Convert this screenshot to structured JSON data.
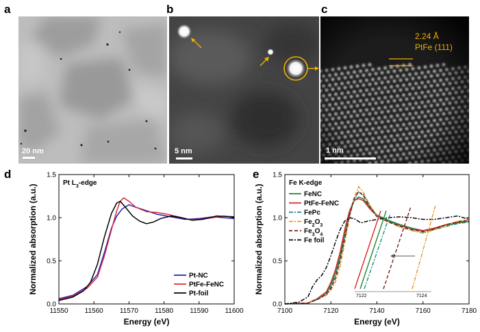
{
  "figure": {
    "panels": {
      "a": {
        "letter": "a",
        "scale_label": "20 nm"
      },
      "b": {
        "letter": "b",
        "scale_label": "5 nm"
      },
      "c": {
        "letter": "c",
        "scale_label": "1 nm",
        "annot_line1": "2.24 Å",
        "annot_line2": "PtFe (111)"
      },
      "d": {
        "letter": "d"
      },
      "e": {
        "letter": "e"
      }
    },
    "colors": {
      "annotation": "#f0b000"
    }
  },
  "chart_data": [
    {
      "type": "line",
      "panel": "d",
      "title": "Pt L3-edge",
      "title_main": "Pt L",
      "title_sub": "3",
      "title_tail": "-edge",
      "xlabel": "Energy (eV)",
      "ylabel": "Normalized absorption (a.u.)",
      "xlim": [
        11550,
        11600
      ],
      "ylim": [
        0.0,
        1.5
      ],
      "xticks": [
        11550,
        11560,
        11570,
        11580,
        11590,
        11600
      ],
      "yticks": [
        "0.0",
        "0.5",
        "1.0",
        "1.5"
      ],
      "legend_position": "bottom-right",
      "series": [
        {
          "name": "Pt-NC",
          "color": "#1f1fb4",
          "points": [
            [
              11550,
              0.06
            ],
            [
              11554,
              0.1
            ],
            [
              11558,
              0.2
            ],
            [
              11561,
              0.34
            ],
            [
              11563,
              0.6
            ],
            [
              11565,
              0.88
            ],
            [
              11566.5,
              1.02
            ],
            [
              11568,
              1.1
            ],
            [
              11570,
              1.15
            ],
            [
              11572,
              1.12
            ],
            [
              11575,
              1.08
            ],
            [
              11578,
              1.04
            ],
            [
              11582,
              1.01
            ],
            [
              11586,
              0.98
            ],
            [
              11590,
              0.99
            ],
            [
              11594,
              1.01
            ],
            [
              11597,
              1.0
            ],
            [
              11600,
              0.99
            ]
          ]
        },
        {
          "name": "PtFe-FeNC",
          "color": "#e0283c",
          "points": [
            [
              11550,
              0.05
            ],
            [
              11554,
              0.09
            ],
            [
              11558,
              0.18
            ],
            [
              11561,
              0.31
            ],
            [
              11563,
              0.56
            ],
            [
              11565,
              0.86
            ],
            [
              11566.5,
              1.08
            ],
            [
              11567.5,
              1.19
            ],
            [
              11568.5,
              1.23
            ],
            [
              11570,
              1.19
            ],
            [
              11572,
              1.12
            ],
            [
              11575,
              1.07
            ],
            [
              11578,
              1.06
            ],
            [
              11581,
              1.04
            ],
            [
              11584,
              1.01
            ],
            [
              11587,
              0.98
            ],
            [
              11590,
              0.98
            ],
            [
              11594,
              1.0
            ],
            [
              11597,
              1.02
            ],
            [
              11600,
              1.0
            ]
          ]
        },
        {
          "name": "Pt-foil",
          "color": "#000000",
          "points": [
            [
              11550,
              0.04
            ],
            [
              11554,
              0.08
            ],
            [
              11557,
              0.15
            ],
            [
              11559,
              0.25
            ],
            [
              11561,
              0.46
            ],
            [
              11563,
              0.78
            ],
            [
              11565,
              1.05
            ],
            [
              11566.5,
              1.17
            ],
            [
              11567.5,
              1.19
            ],
            [
              11569,
              1.12
            ],
            [
              11571,
              1.02
            ],
            [
              11573,
              0.96
            ],
            [
              11575,
              0.93
            ],
            [
              11577,
              0.95
            ],
            [
              11579,
              0.99
            ],
            [
              11582,
              1.02
            ],
            [
              11585,
              1.0
            ],
            [
              11588,
              0.97
            ],
            [
              11591,
              0.98
            ],
            [
              11595,
              1.02
            ],
            [
              11600,
              1.01
            ]
          ]
        }
      ]
    },
    {
      "type": "line",
      "panel": "e",
      "title": "Fe K-edge",
      "xlabel": "Energy (eV)",
      "ylabel": "Normalized absorption (a.u.)",
      "xlim": [
        7100,
        7180
      ],
      "ylim": [
        0.0,
        1.5
      ],
      "xticks": [
        7100,
        7120,
        7140,
        7160,
        7180
      ],
      "yticks": [
        "0.0",
        "0.5",
        "1.0",
        "1.5"
      ],
      "legend_position": "top-left",
      "legend": [
        {
          "label": "FeNC",
          "sub": "",
          "tail": "",
          "color": "#1a8a2c",
          "dash": ""
        },
        {
          "label": "PtFe-FeNC",
          "sub": "",
          "tail": "",
          "color": "#d8232a",
          "dash": ""
        },
        {
          "label": "FePc",
          "sub": "",
          "tail": "",
          "color": "#1a8c8c",
          "dash": "6,2,2,2"
        },
        {
          "label": "Fe",
          "sub": "2",
          "tail": "O",
          "sub2": "3",
          "color": "#e8961e",
          "dash": "6,2,2,2"
        },
        {
          "label": "Fe",
          "sub": "3",
          "tail": "O",
          "sub2": "4",
          "color": "#7a1a1a",
          "dash": "5,3"
        },
        {
          "label": "Fe foil",
          "sub": "",
          "tail": "",
          "sub2": "",
          "color": "#000000",
          "dash": "6,2,2,2"
        }
      ],
      "series": [
        {
          "name": "FeNC",
          "color": "#1a8a2c",
          "dash": "",
          "points": [
            [
              7100,
              0.0
            ],
            [
              7110,
              0.01
            ],
            [
              7114,
              0.05
            ],
            [
              7118,
              0.12
            ],
            [
              7120,
              0.22
            ],
            [
              7122,
              0.36
            ],
            [
              7124,
              0.55
            ],
            [
              7126,
              0.8
            ],
            [
              7128,
              1.03
            ],
            [
              7130,
              1.19
            ],
            [
              7132,
              1.24
            ],
            [
              7134,
              1.22
            ],
            [
              7137,
              1.12
            ],
            [
              7140,
              1.03
            ],
            [
              7145,
              0.97
            ],
            [
              7150,
              0.92
            ],
            [
              7155,
              0.88
            ],
            [
              7160,
              0.85
            ],
            [
              7165,
              0.87
            ],
            [
              7170,
              0.91
            ],
            [
              7175,
              0.94
            ],
            [
              7180,
              0.96
            ]
          ]
        },
        {
          "name": "PtFe-FeNC",
          "color": "#d8232a",
          "dash": "",
          "points": [
            [
              7100,
              0.0
            ],
            [
              7110,
              0.01
            ],
            [
              7114,
              0.06
            ],
            [
              7118,
              0.14
            ],
            [
              7120,
              0.25
            ],
            [
              7122,
              0.4
            ],
            [
              7124,
              0.6
            ],
            [
              7126,
              0.86
            ],
            [
              7128,
              1.07
            ],
            [
              7130,
              1.2
            ],
            [
              7132,
              1.22
            ],
            [
              7134,
              1.2
            ],
            [
              7137,
              1.1
            ],
            [
              7140,
              1.02
            ],
            [
              7145,
              0.96
            ],
            [
              7150,
              0.91
            ],
            [
              7155,
              0.87
            ],
            [
              7160,
              0.85
            ],
            [
              7165,
              0.88
            ],
            [
              7170,
              0.92
            ],
            [
              7175,
              0.95
            ],
            [
              7180,
              0.96
            ]
          ]
        },
        {
          "name": "FePc",
          "color": "#1a8c8c",
          "dash": "6,2,2,2",
          "points": [
            [
              7100,
              0.0
            ],
            [
              7110,
              0.01
            ],
            [
              7114,
              0.06
            ],
            [
              7118,
              0.12
            ],
            [
              7120,
              0.2
            ],
            [
              7122,
              0.33
            ],
            [
              7124,
              0.52
            ],
            [
              7126,
              0.78
            ],
            [
              7128,
              1.02
            ],
            [
              7130,
              1.2
            ],
            [
              7132,
              1.3
            ],
            [
              7134,
              1.27
            ],
            [
              7137,
              1.14
            ],
            [
              7140,
              1.02
            ],
            [
              7145,
              0.96
            ],
            [
              7150,
              0.91
            ],
            [
              7155,
              0.87
            ],
            [
              7160,
              0.83
            ],
            [
              7165,
              0.86
            ],
            [
              7170,
              0.9
            ],
            [
              7175,
              0.93
            ],
            [
              7180,
              0.95
            ]
          ]
        },
        {
          "name": "Fe2O3",
          "color": "#e8961e",
          "dash": "6,2,2,2",
          "points": [
            [
              7100,
              0.0
            ],
            [
              7110,
              0.01
            ],
            [
              7114,
              0.05
            ],
            [
              7118,
              0.1
            ],
            [
              7120,
              0.16
            ],
            [
              7122,
              0.26
            ],
            [
              7124,
              0.44
            ],
            [
              7126,
              0.7
            ],
            [
              7128,
              0.98
            ],
            [
              7130,
              1.22
            ],
            [
              7132,
              1.36
            ],
            [
              7134,
              1.3
            ],
            [
              7137,
              1.14
            ],
            [
              7140,
              1.02
            ],
            [
              7145,
              0.95
            ],
            [
              7150,
              0.89
            ],
            [
              7155,
              0.85
            ],
            [
              7160,
              0.82
            ],
            [
              7165,
              0.86
            ],
            [
              7170,
              0.91
            ],
            [
              7175,
              0.96
            ],
            [
              7180,
              0.98
            ]
          ]
        },
        {
          "name": "Fe3O4",
          "color": "#7a1a1a",
          "dash": "5,3",
          "points": [
            [
              7100,
              0.0
            ],
            [
              7110,
              0.01
            ],
            [
              7114,
              0.05
            ],
            [
              7118,
              0.11
            ],
            [
              7120,
              0.18
            ],
            [
              7122,
              0.3
            ],
            [
              7124,
              0.5
            ],
            [
              7126,
              0.76
            ],
            [
              7128,
              1.02
            ],
            [
              7130,
              1.22
            ],
            [
              7132,
              1.3
            ],
            [
              7134,
              1.26
            ],
            [
              7137,
              1.12
            ],
            [
              7140,
              1.01
            ],
            [
              7145,
              0.95
            ],
            [
              7150,
              0.9
            ],
            [
              7155,
              0.86
            ],
            [
              7160,
              0.84
            ],
            [
              7165,
              0.87
            ],
            [
              7170,
              0.92
            ],
            [
              7175,
              0.95
            ],
            [
              7180,
              0.97
            ]
          ]
        },
        {
          "name": "Fe foil",
          "color": "#000000",
          "dash": "6,2,2,2",
          "points": [
            [
              7100,
              0.0
            ],
            [
              7106,
              0.02
            ],
            [
              7110,
              0.08
            ],
            [
              7112,
              0.2
            ],
            [
              7114,
              0.28
            ],
            [
              7116,
              0.33
            ],
            [
              7118,
              0.42
            ],
            [
              7120,
              0.56
            ],
            [
              7122,
              0.72
            ],
            [
              7124,
              0.86
            ],
            [
              7126,
              0.96
            ],
            [
              7128,
              1.0
            ],
            [
              7130,
              0.99
            ],
            [
              7133,
              0.94
            ],
            [
              7136,
              0.96
            ],
            [
              7140,
              0.98
            ],
            [
              7145,
              1.0
            ],
            [
              7150,
              1.01
            ],
            [
              7155,
              1.0
            ],
            [
              7160,
              0.98
            ],
            [
              7165,
              0.98
            ],
            [
              7170,
              1.0
            ],
            [
              7175,
              1.02
            ],
            [
              7180,
              0.98
            ]
          ]
        }
      ],
      "inset": {
        "xticks": [
          "7122",
          "7124"
        ],
        "lines": [
          {
            "color": "#d8232a",
            "dash": ""
          },
          {
            "color": "#1a8a2c",
            "dash": ""
          },
          {
            "color": "#1a8c8c",
            "dash": "6,2,2,2"
          },
          {
            "color": "#7a1a1a",
            "dash": "5,3"
          },
          {
            "color": "#e8961e",
            "dash": "6,2,2,2"
          }
        ]
      }
    }
  ]
}
